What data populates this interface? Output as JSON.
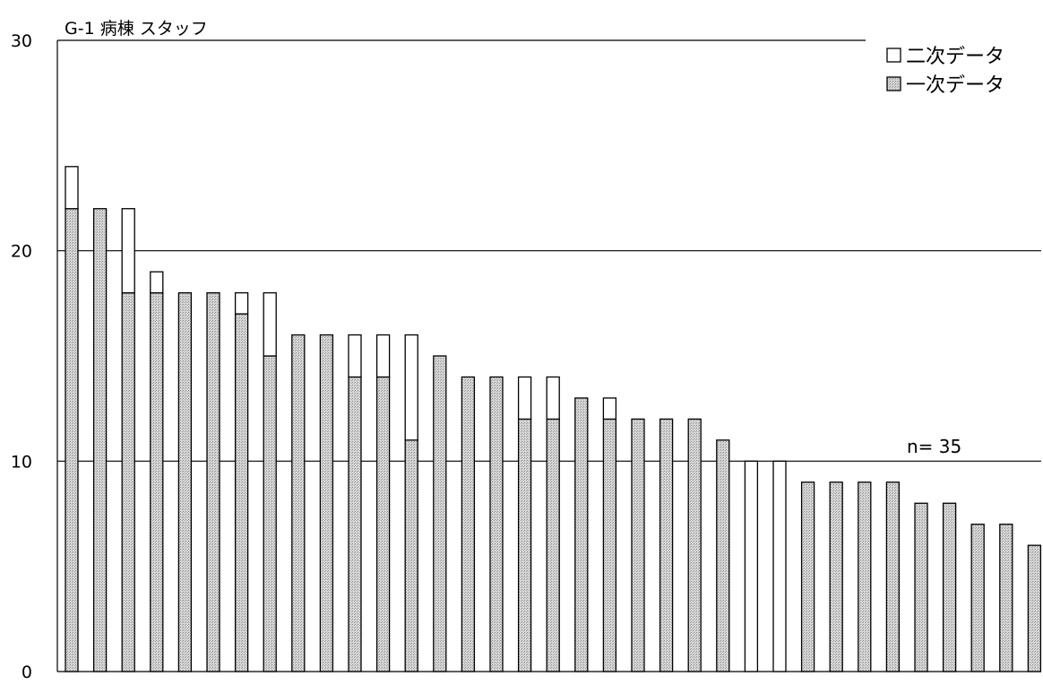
{
  "chart_data": {
    "type": "bar",
    "stacked": true,
    "title": "G-1 病棟  スタッフ",
    "annotation": "n= 35",
    "ylim": [
      0,
      30
    ],
    "yticks": [
      "0",
      "10",
      "20",
      "30"
    ],
    "grid": true,
    "legend_position": "top-right",
    "series": [
      {
        "name": "一次データ",
        "color": "#c8c8c8",
        "values": [
          22,
          22,
          18,
          18,
          18,
          18,
          17,
          15,
          16,
          16,
          14,
          14,
          11,
          15,
          14,
          14,
          12,
          12,
          13,
          12,
          12,
          12,
          12,
          11,
          0,
          0,
          9,
          9,
          9,
          9,
          8,
          8,
          7,
          7,
          6
        ]
      },
      {
        "name": "二次データ",
        "color": "#ffffff",
        "values": [
          2,
          0,
          4,
          1,
          0,
          0,
          1,
          3,
          0,
          0,
          2,
          2,
          5,
          0,
          0,
          0,
          2,
          2,
          0,
          1,
          0,
          0,
          0,
          0,
          10,
          10,
          0,
          0,
          0,
          0,
          0,
          0,
          0,
          0,
          0
        ]
      }
    ],
    "legend": [
      {
        "label": "二次データ",
        "color": "#ffffff"
      },
      {
        "label": "一次データ",
        "color": "#c8c8c8"
      }
    ]
  }
}
